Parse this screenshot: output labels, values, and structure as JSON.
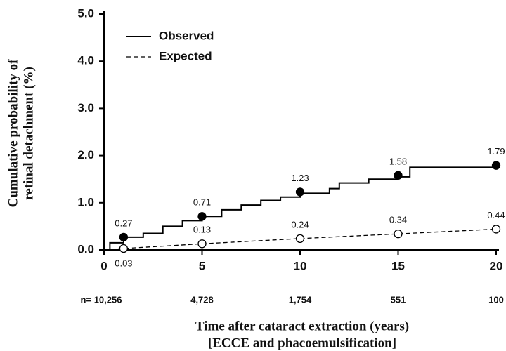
{
  "chart_data": {
    "type": "line",
    "ylabel": [
      "Cumulative probability of",
      "retinal detachment (%)"
    ],
    "xlabel": [
      "Time after cataract extraction (years)",
      "[ECCE and phacoemulsification]"
    ],
    "xlim": [
      0,
      20
    ],
    "xticks": [
      0,
      5,
      10,
      15,
      20
    ],
    "ylim": [
      0,
      5
    ],
    "yticks": [
      {
        "value": 0,
        "label": "0.0"
      },
      {
        "value": 1,
        "label": "1.0"
      },
      {
        "value": 2,
        "label": "2.0"
      },
      {
        "value": 3,
        "label": "3.0"
      },
      {
        "value": 4,
        "label": "4.0"
      },
      {
        "value": 5,
        "label": "5.0"
      }
    ],
    "at_risk": [
      "n= 10,256",
      "4,728",
      "1,754",
      "551",
      "100"
    ],
    "series": [
      {
        "name": "Observed",
        "style": "solid",
        "step": true,
        "color": "#000000",
        "x": [
          0,
          0.3,
          1,
          2,
          3,
          4,
          5,
          6,
          7,
          8,
          9,
          10,
          11.5,
          12,
          13.5,
          15,
          15.6,
          20
        ],
        "values": [
          0,
          0.15,
          0.27,
          0.35,
          0.5,
          0.62,
          0.71,
          0.85,
          0.95,
          1.05,
          1.12,
          1.2,
          1.3,
          1.42,
          1.5,
          1.55,
          1.75,
          1.75
        ],
        "points": {
          "x": [
            1,
            5,
            10,
            15,
            20
          ],
          "values": [
            0.27,
            0.71,
            1.23,
            1.58,
            1.79
          ],
          "filled": true
        }
      },
      {
        "name": "Expected",
        "style": "dashed",
        "step": false,
        "color": "#000000",
        "x": [
          0,
          1,
          5,
          10,
          15,
          20
        ],
        "values": [
          0,
          0.03,
          0.13,
          0.24,
          0.34,
          0.44
        ],
        "points": {
          "x": [
            1,
            5,
            10,
            15,
            20
          ],
          "values": [
            0.03,
            0.13,
            0.24,
            0.34,
            0.44
          ],
          "filled": false
        }
      }
    ]
  }
}
